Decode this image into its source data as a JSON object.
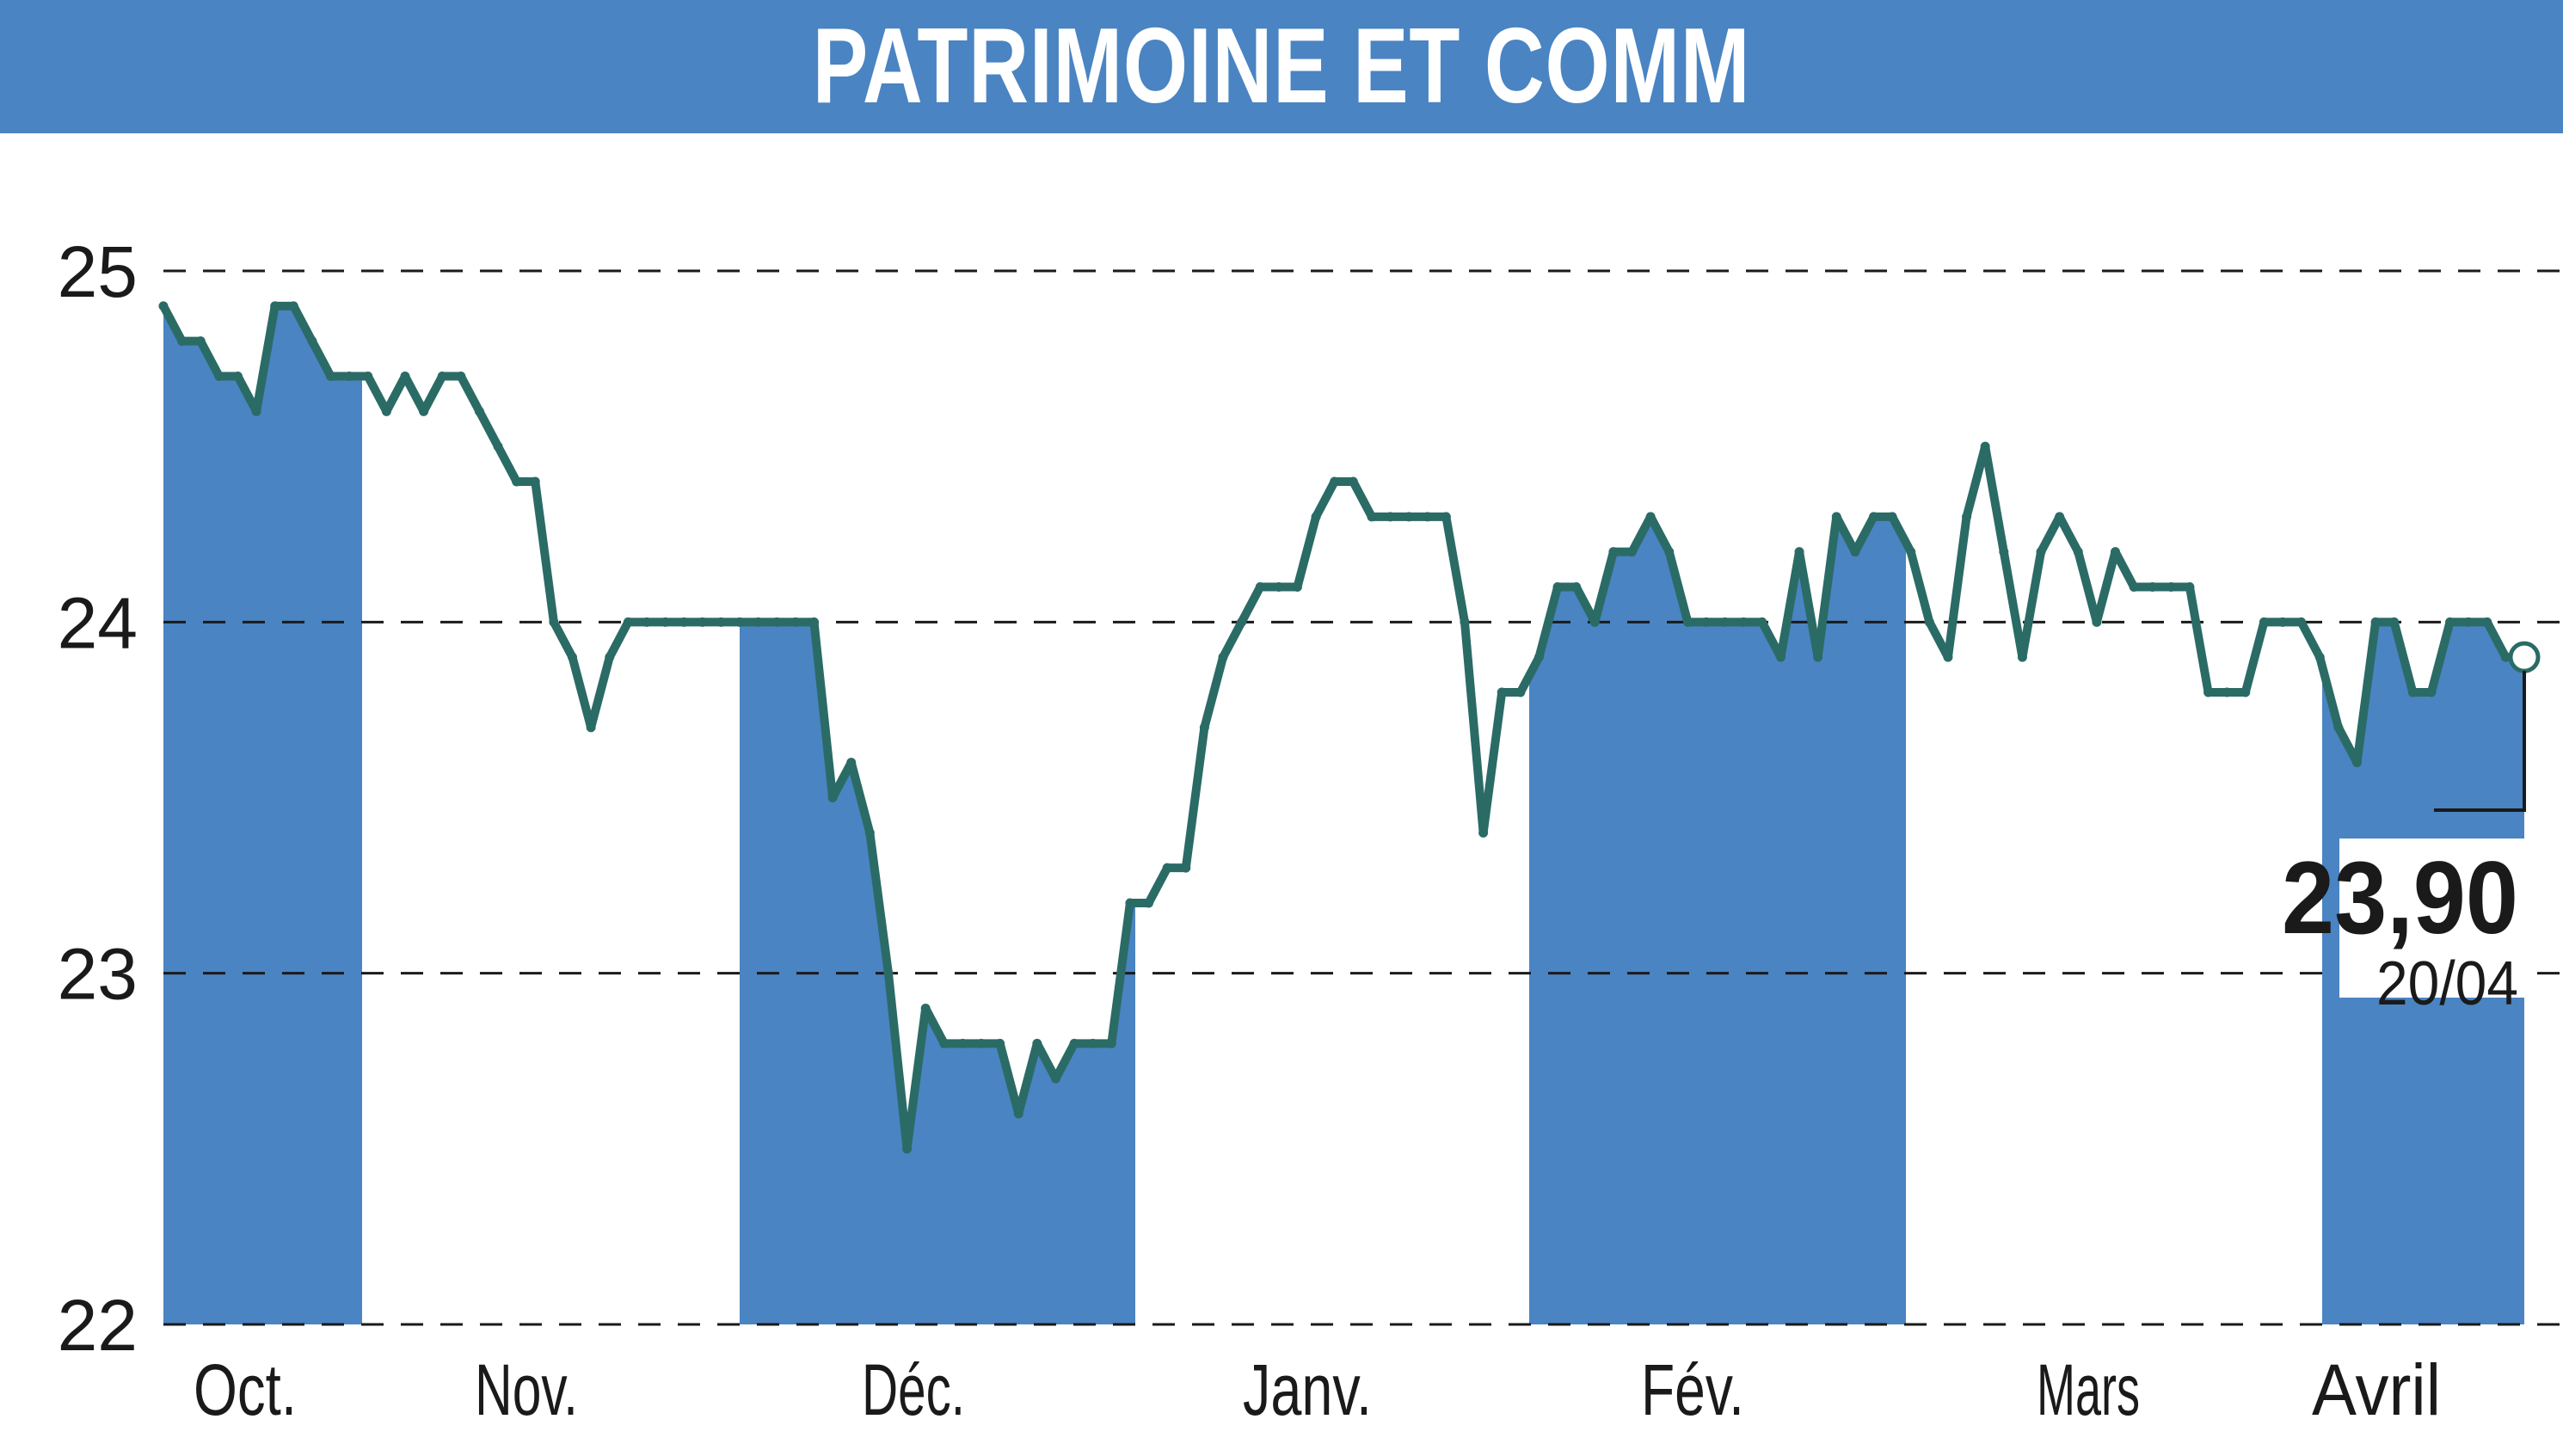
{
  "title": "PATRIMOINE ET COMM",
  "colors": {
    "title_bar": "#4a84c2",
    "title_text": "#ffffff",
    "month_band": "#4a84c2",
    "line": "#2b6b66",
    "grid": "#1a1a1a"
  },
  "chart_data": {
    "type": "line",
    "title": "PATRIMOINE ET COMM",
    "xlabel": "",
    "ylabel": "",
    "ylim": [
      22,
      25
    ],
    "yticks": [
      "22",
      "23",
      "24",
      "25"
    ],
    "grid": "horizontal dashed",
    "months": [
      "Oct.",
      "Nov.",
      "Déc.",
      "Janv.",
      "Fév.",
      "Mars",
      "Avril"
    ],
    "shaded_months": [
      "Oct.",
      "Déc.",
      "Fév.",
      "Avril"
    ],
    "series": [
      {
        "values": [
          24.9,
          24.8,
          24.8,
          24.7,
          24.7,
          24.6,
          24.9,
          24.9,
          24.8,
          24.7,
          24.7,
          24.7,
          24.6,
          24.7,
          24.6,
          24.7,
          24.7,
          24.6,
          24.5,
          24.4,
          24.4,
          24.0,
          23.9,
          23.7,
          23.9,
          24.0,
          24.0,
          24.0,
          24.0,
          24.0,
          24.0,
          24.0,
          24.0,
          24.0,
          24.0,
          24.0,
          23.5,
          23.6,
          23.4,
          23.0,
          22.5,
          22.9,
          22.8,
          22.8,
          22.8,
          22.8,
          22.6,
          22.8,
          22.7,
          22.8,
          22.8,
          22.8,
          23.2,
          23.2,
          23.3,
          23.3,
          23.7,
          23.9,
          24.0,
          24.1,
          24.1,
          24.1,
          24.3,
          24.4,
          24.4,
          24.3,
          24.3,
          24.3,
          24.3,
          24.3,
          24.0,
          23.4,
          23.8,
          23.8,
          23.9,
          24.1,
          24.1,
          24.0,
          24.2,
          24.2,
          24.3,
          24.2,
          24.0,
          24.0,
          24.0,
          24.0,
          24.0,
          23.9,
          24.2,
          23.9,
          24.3,
          24.2,
          24.3,
          24.3,
          24.2,
          24.0,
          23.9,
          24.3,
          24.5,
          24.2,
          23.9,
          24.2,
          24.3,
          24.2,
          24.0,
          24.2,
          24.1,
          24.1,
          24.1,
          24.1,
          23.8,
          23.8,
          23.8,
          24.0,
          24.0,
          24.0,
          23.9,
          23.7,
          23.6,
          24.0,
          24.0,
          23.8,
          23.8,
          24.0,
          24.0,
          24.0,
          23.9,
          23.9
        ]
      }
    ],
    "last_value": "23,90",
    "last_date": "20/04"
  }
}
